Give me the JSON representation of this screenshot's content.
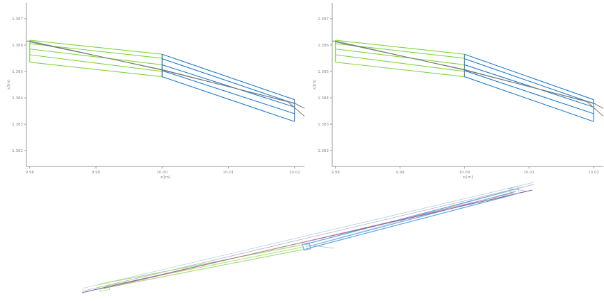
{
  "chart_data": [
    {
      "type": "line",
      "title": "",
      "xlabel": "z/[m]",
      "ylabel": "x/[m]",
      "xlim": [
        9.9795,
        10.0215
      ],
      "ylim": [
        1.3814,
        1.3876
      ],
      "x_ticks": [
        "9.98",
        "9.99",
        "10.00",
        "10.01",
        "10.02"
      ],
      "x_tick_values": [
        9.98,
        9.99,
        10.0,
        10.01,
        10.02
      ],
      "y_ticks": [
        "1.382",
        "1.383",
        "1.384",
        "1.385",
        "1.386",
        "1.387"
      ],
      "y_tick_values": [
        1.382,
        1.383,
        1.384,
        1.385,
        1.386,
        1.387
      ],
      "colors": {
        "green": "#7ed63c",
        "blue": "#1f7bd1",
        "gray": "#7a7a7a"
      },
      "series": [
        {
          "color": "green",
          "points": [
            [
              9.98,
              1.38618
            ],
            [
              10.0,
              1.38565
            ]
          ]
        },
        {
          "color": "green",
          "points": [
            [
              9.98,
              1.38605
            ],
            [
              10.0,
              1.3855
            ]
          ]
        },
        {
          "color": "green",
          "points": [
            [
              9.98,
              1.38585
            ],
            [
              10.0,
              1.38525
            ]
          ]
        },
        {
          "color": "green",
          "points": [
            [
              9.98,
              1.38563
            ],
            [
              10.0,
              1.385
            ]
          ]
        },
        {
          "color": "green",
          "points": [
            [
              9.98,
              1.38535
            ],
            [
              10.0,
              1.3848
            ]
          ]
        },
        {
          "color": "green",
          "points": [
            [
              9.98,
              1.38535
            ],
            [
              9.98,
              1.38618
            ]
          ]
        },
        {
          "color": "green",
          "points": [
            [
              10.0,
              1.3848
            ],
            [
              10.0,
              1.38565
            ]
          ]
        },
        {
          "color": "blue",
          "points": [
            [
              10.0,
              1.38565
            ],
            [
              10.02,
              1.38393
            ]
          ]
        },
        {
          "color": "blue",
          "points": [
            [
              10.0,
              1.38548
            ],
            [
              10.02,
              1.38378
            ]
          ]
        },
        {
          "color": "blue",
          "points": [
            [
              10.0,
              1.38525
            ],
            [
              10.02,
              1.38365
            ]
          ]
        },
        {
          "color": "blue",
          "points": [
            [
              10.0,
              1.38503
            ],
            [
              10.02,
              1.3834
            ]
          ]
        },
        {
          "color": "blue",
          "points": [
            [
              10.0,
              1.3848
            ],
            [
              10.02,
              1.3831
            ]
          ]
        },
        {
          "color": "blue",
          "points": [
            [
              10.0,
              1.3848
            ],
            [
              10.0,
              1.38565
            ]
          ]
        },
        {
          "color": "blue",
          "points": [
            [
              10.02,
              1.3831
            ],
            [
              10.02,
              1.38393
            ]
          ]
        },
        {
          "color": "gray",
          "points": [
            [
              9.9795,
              1.38615
            ],
            [
              9.98,
              1.38615
            ],
            [
              10.0,
              1.38505
            ],
            [
              10.02,
              1.3838
            ],
            [
              10.0215,
              1.3836
            ]
          ]
        },
        {
          "color": "gray",
          "points": [
            [
              9.98,
              1.38612
            ],
            [
              10.0,
              1.38507
            ],
            [
              10.019,
              1.38385
            ],
            [
              10.0215,
              1.3833
            ]
          ]
        }
      ]
    },
    {
      "type": "line",
      "title": "",
      "xlabel": "z/[m]",
      "ylabel": "x/[m]",
      "xlim": [
        9.9795,
        10.0215
      ],
      "ylim": [
        1.3814,
        1.3876
      ],
      "x_ticks": [
        "9.98",
        "9.99",
        "10.00",
        "10.01",
        "10.02"
      ],
      "x_tick_values": [
        9.98,
        9.99,
        10.0,
        10.01,
        10.02
      ],
      "y_ticks": [
        "1.382",
        "1.383",
        "1.384",
        "1.385",
        "1.386",
        "1.387"
      ],
      "y_tick_values": [
        1.382,
        1.383,
        1.384,
        1.385,
        1.386,
        1.387
      ],
      "colors": {
        "green": "#7ed63c",
        "blue": "#1f7bd1",
        "gray": "#7a7a7a"
      },
      "series": [
        {
          "color": "green",
          "points": [
            [
              9.98,
              1.38618
            ],
            [
              10.0,
              1.38565
            ]
          ]
        },
        {
          "color": "green",
          "points": [
            [
              9.98,
              1.38605
            ],
            [
              10.0,
              1.3855
            ]
          ]
        },
        {
          "color": "green",
          "points": [
            [
              9.98,
              1.38585
            ],
            [
              10.0,
              1.38525
            ]
          ]
        },
        {
          "color": "green",
          "points": [
            [
              9.98,
              1.38563
            ],
            [
              10.0,
              1.385
            ]
          ]
        },
        {
          "color": "green",
          "points": [
            [
              9.98,
              1.38535
            ],
            [
              10.0,
              1.3848
            ]
          ]
        },
        {
          "color": "green",
          "points": [
            [
              9.98,
              1.38535
            ],
            [
              9.98,
              1.38618
            ]
          ]
        },
        {
          "color": "green",
          "points": [
            [
              10.0,
              1.3848
            ],
            [
              10.0,
              1.38565
            ]
          ]
        },
        {
          "color": "blue",
          "points": [
            [
              10.0,
              1.38565
            ],
            [
              10.02,
              1.38393
            ]
          ]
        },
        {
          "color": "blue",
          "points": [
            [
              10.0,
              1.38548
            ],
            [
              10.02,
              1.38378
            ]
          ]
        },
        {
          "color": "blue",
          "points": [
            [
              10.0,
              1.38525
            ],
            [
              10.02,
              1.38365
            ]
          ]
        },
        {
          "color": "blue",
          "points": [
            [
              10.0,
              1.38503
            ],
            [
              10.02,
              1.3834
            ]
          ]
        },
        {
          "color": "blue",
          "points": [
            [
              10.0,
              1.3848
            ],
            [
              10.02,
              1.3831
            ]
          ]
        },
        {
          "color": "blue",
          "points": [
            [
              10.0,
              1.3848
            ],
            [
              10.0,
              1.38565
            ]
          ]
        },
        {
          "color": "blue",
          "points": [
            [
              10.02,
              1.3831
            ],
            [
              10.02,
              1.38393
            ]
          ]
        },
        {
          "color": "gray",
          "points": [
            [
              9.9795,
              1.38615
            ],
            [
              9.98,
              1.38615
            ],
            [
              10.0,
              1.38505
            ],
            [
              10.02,
              1.3838
            ],
            [
              10.0215,
              1.3836
            ]
          ]
        },
        {
          "color": "gray",
          "points": [
            [
              9.98,
              1.38612
            ],
            [
              10.0,
              1.38507
            ],
            [
              10.019,
              1.38385
            ],
            [
              10.0215,
              1.3833
            ]
          ]
        }
      ]
    }
  ],
  "view_3d": {
    "colors": {
      "green": "#a9e07e",
      "blue": "#5fa6e0",
      "light_blue": "#b7cfe8",
      "purple": "#7a5fb0",
      "red": "#d98a8a",
      "gray": "#a8b4c2"
    }
  }
}
